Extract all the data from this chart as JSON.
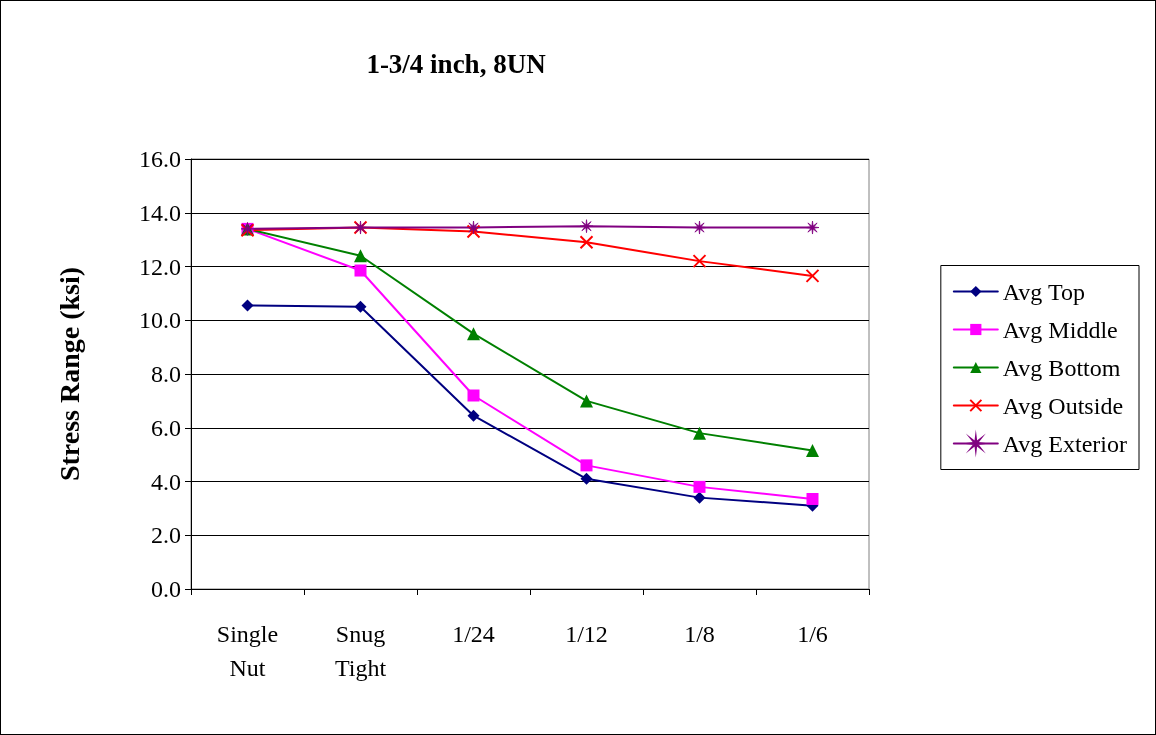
{
  "chart_data": {
    "type": "line",
    "title": "1-3/4 inch, 8UN",
    "ylabel": "Stress Range (ksi)",
    "categories": [
      "Single\nNut",
      "Snug\nTight",
      "1/24",
      "1/12",
      "1/8",
      "1/6"
    ],
    "series": [
      {
        "name": "Avg Top",
        "color": "#000080",
        "marker": "diamond",
        "values": [
          10.55,
          10.5,
          6.45,
          4.1,
          3.4,
          3.1
        ]
      },
      {
        "name": "Avg Middle",
        "color": "#ff00ff",
        "marker": "square",
        "values": [
          13.4,
          11.85,
          7.2,
          4.6,
          3.8,
          3.35
        ]
      },
      {
        "name": "Avg Bottom",
        "color": "#008000",
        "marker": "triangle",
        "values": [
          13.4,
          12.4,
          9.5,
          7.0,
          5.8,
          5.15
        ]
      },
      {
        "name": "Avg Outside",
        "color": "#ff0000",
        "marker": "cross",
        "values": [
          13.35,
          13.45,
          13.3,
          12.9,
          12.2,
          11.65
        ]
      },
      {
        "name": "Avg Exterior",
        "color": "#800080",
        "marker": "star",
        "values": [
          13.4,
          13.45,
          13.45,
          13.5,
          13.45,
          13.45
        ]
      }
    ],
    "ylim": [
      0,
      16
    ],
    "yticks": [
      {
        "value": 0,
        "label": "0.0"
      },
      {
        "value": 2,
        "label": "2.0"
      },
      {
        "value": 4,
        "label": "4.0"
      },
      {
        "value": 6,
        "label": "6.0"
      },
      {
        "value": 8,
        "label": "8.0"
      },
      {
        "value": 10,
        "label": "10.0"
      },
      {
        "value": 12,
        "label": "12.0"
      },
      {
        "value": 14,
        "label": "14.0"
      },
      {
        "value": 16,
        "label": "16.0"
      }
    ],
    "grid": "y",
    "legend": "right",
    "line_style": "solid"
  }
}
